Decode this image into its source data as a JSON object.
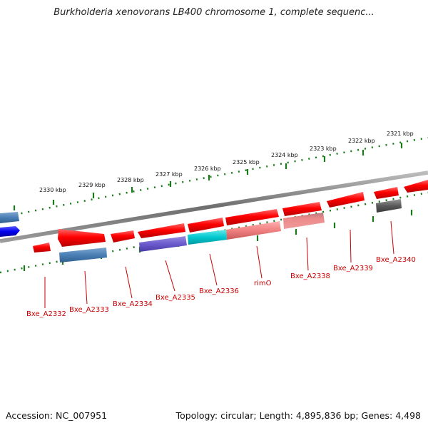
{
  "title": "Burkholderia xenovorans LB400 chromosome 1, complete sequenc...",
  "footer": {
    "accession": "Accession: NC_007951",
    "topology": "Topology: circular; Length: 4,895,836 bp; Genes: 4,498"
  },
  "ticks": [
    "2321 kbp",
    "2322 kbp",
    "2323 kbp",
    "2324 kbp",
    "2325 kbp",
    "2326 kbp",
    "2327 kbp",
    "2328 kbp",
    "2329 kbp",
    "2330 kbp"
  ],
  "gene_labels": [
    "Bxe_A2332",
    "Bxe_A2333",
    "Bxe_A2334",
    "Bxe_A2335",
    "Bxe_A2336",
    "rimO",
    "Bxe_A2338",
    "Bxe_A2339",
    "Bxe_A2340"
  ],
  "colors": {
    "forward_gene": "#ff0000",
    "label": "#cc0000",
    "tick": "#1a7a1a",
    "backbone": "#777777"
  }
}
